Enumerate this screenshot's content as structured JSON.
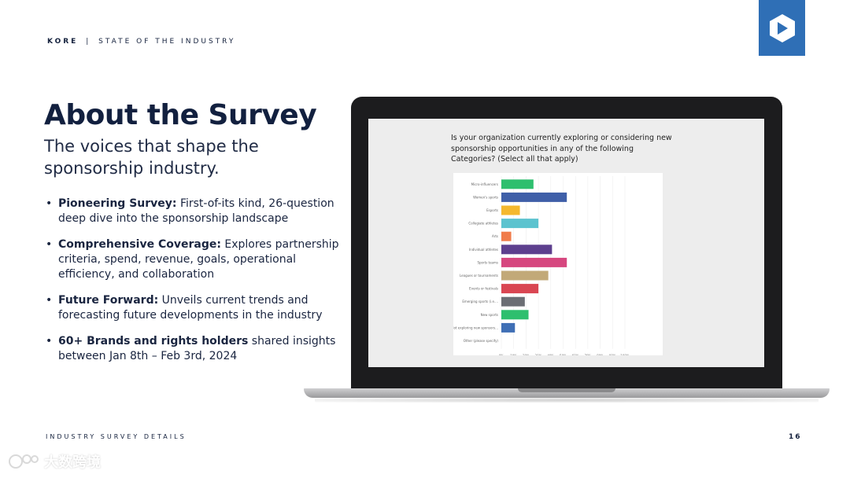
{
  "header": {
    "brand": "KORE",
    "separator": "|",
    "section": "STATE OF THE INDUSTRY"
  },
  "title": "About the Survey",
  "subtitle": "The voices that shape the sponsorship industry.",
  "bullets": [
    {
      "bold": "Pioneering Survey:",
      "text": " First-of-its kind, 26-question deep dive into the sponsorship landscape"
    },
    {
      "bold": "Comprehensive Coverage:",
      "text": " Explores partnership criteria, spend, revenue, goals, operational efficiency, and collaboration"
    },
    {
      "bold": "Future Forward:",
      "text": " Unveils current trends and forecasting future developments in the industry"
    },
    {
      "bold": "60+ Brands and rights holders",
      "text": " shared insights between Jan 8th – Feb 3rd, 2024"
    }
  ],
  "footer": "INDUSTRY SURVEY DETAILS",
  "page_number": "16",
  "watermark": "大数跨境",
  "colors": {
    "navy": "#14213d",
    "logo_blue": "#2f6fb6"
  },
  "question": "Is your organization currently exploring or considering new sponsorship opportunities in any of the following Categories? (Select all that apply)",
  "chart_data": {
    "type": "bar",
    "orientation": "horizontal",
    "categories": [
      "Micro-influencers",
      "Women's sports",
      "Esports",
      "Collegiate athletes",
      "Arts",
      "Individual athletes",
      "Sports teams",
      "Leagues or tournaments",
      "Events or festivals",
      "Emerging sports (i.e....",
      "New sports",
      "Not exploring new sponsors...",
      "Other (please specify)"
    ],
    "values": [
      26,
      53,
      15,
      30,
      8,
      41,
      53,
      38,
      30,
      19,
      22,
      11,
      0
    ],
    "colors": [
      "#2ebf6e",
      "#3f5fa8",
      "#f4b82e",
      "#5cc3cf",
      "#f07c4b",
      "#5d3f8e",
      "#d6477f",
      "#c2a978",
      "#d94652",
      "#6b6e74",
      "#2ebf6e",
      "#3f6fb5",
      "#cccccc"
    ],
    "xlim": [
      0,
      100
    ],
    "xticks": [
      "0%",
      "10%",
      "20%",
      "30%",
      "40%",
      "50%",
      "60%",
      "70%",
      "80%",
      "90%",
      "100%"
    ],
    "grid": true
  }
}
